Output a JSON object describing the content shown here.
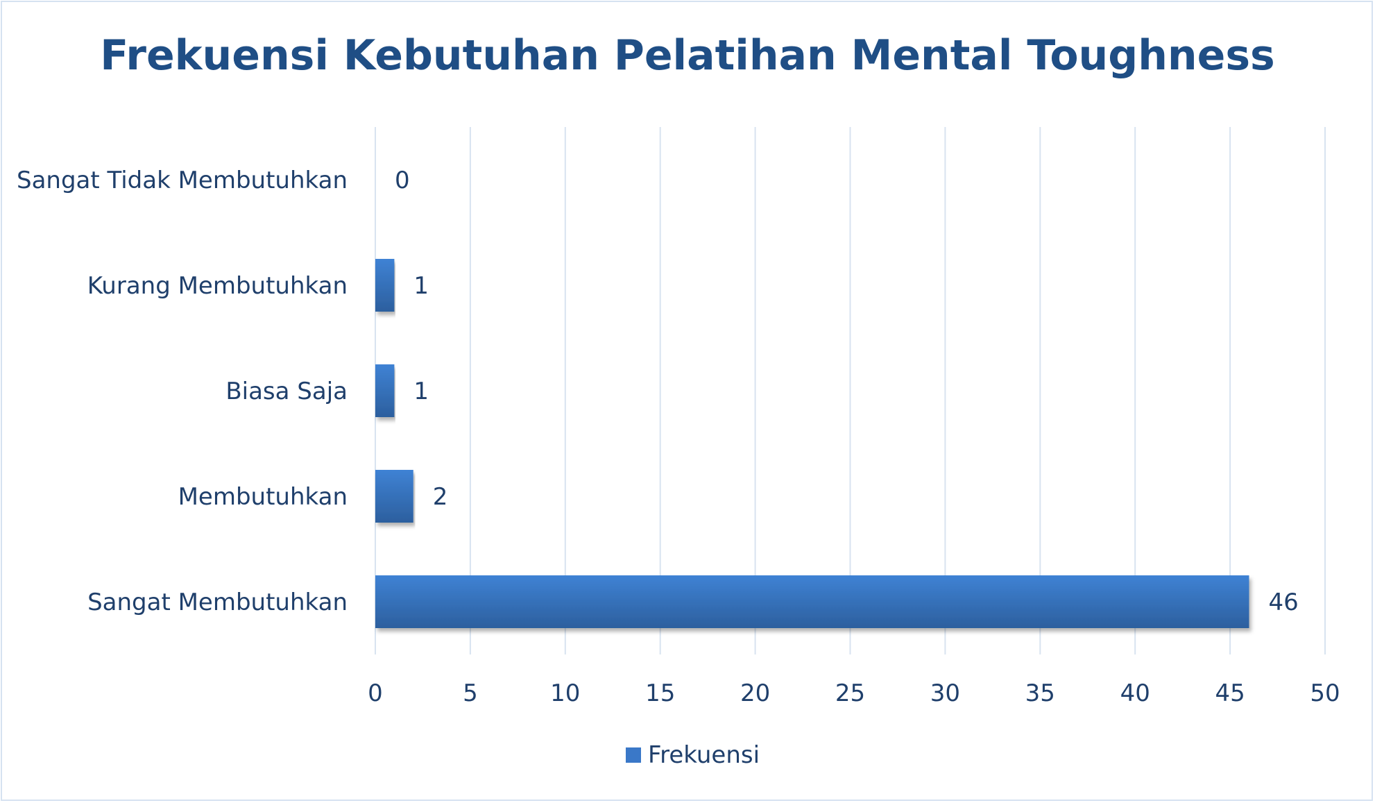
{
  "chart_data": {
    "type": "bar",
    "orientation": "horizontal",
    "title": "Frekuensi Kebutuhan Pelatihan Mental Toughness",
    "categories": [
      "Sangat Tidak Membutuhkan",
      "Kurang Membutuhkan",
      "Biasa Saja",
      "Membutuhkan",
      "Sangat Membutuhkan"
    ],
    "series": [
      {
        "name": "Frekuensi",
        "values": [
          0,
          1,
          1,
          2,
          46
        ],
        "color": "#3a78c8"
      }
    ],
    "xlim": [
      0,
      50
    ],
    "xticks": [
      0,
      5,
      10,
      15,
      20,
      25,
      30,
      35,
      40,
      45,
      50
    ],
    "grid": true,
    "legend_position": "bottom",
    "data_labels": true
  }
}
